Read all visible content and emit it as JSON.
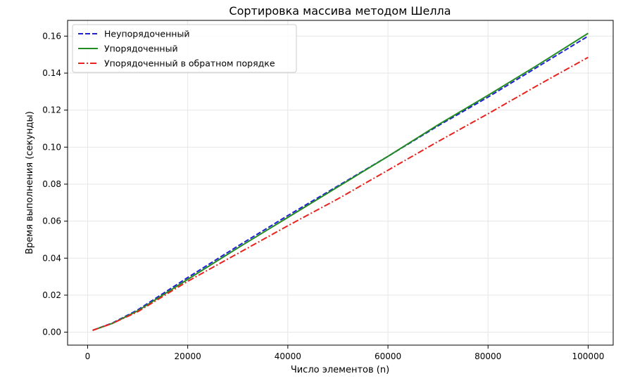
{
  "chart_data": {
    "type": "line",
    "title": "Сортировка массива методом Шелла",
    "xlabel": "Число элементов (n)",
    "ylabel": "Время выполнения (секунды)",
    "xlim": [
      -4000,
      105000
    ],
    "ylim": [
      -0.007,
      0.1685
    ],
    "xticks": [
      0,
      20000,
      40000,
      60000,
      80000,
      100000
    ],
    "xtick_labels": [
      "0",
      "20000",
      "40000",
      "60000",
      "80000",
      "100000"
    ],
    "yticks": [
      0.0,
      0.02,
      0.04,
      0.06,
      0.08,
      0.1,
      0.12,
      0.14,
      0.16
    ],
    "ytick_labels": [
      "0.00",
      "0.02",
      "0.04",
      "0.06",
      "0.08",
      "0.10",
      "0.12",
      "0.14",
      "0.16"
    ],
    "grid": true,
    "legend_position": "top-left",
    "series": [
      {
        "name": "Неупорядоченный",
        "color": "#1f1fd4",
        "dash": "dashed",
        "x": [
          1000,
          5000,
          10000,
          20000,
          30000,
          40000,
          50000,
          60000,
          70000,
          80000,
          90000,
          100000
        ],
        "y": [
          0.001,
          0.005,
          0.012,
          0.0295,
          0.0465,
          0.063,
          0.079,
          0.095,
          0.1115,
          0.127,
          0.1435,
          0.16
        ]
      },
      {
        "name": "Упорядоченный",
        "color": "#228b22",
        "dash": "solid",
        "x": [
          1000,
          5000,
          10000,
          20000,
          30000,
          40000,
          50000,
          60000,
          70000,
          80000,
          90000,
          100000
        ],
        "y": [
          0.001,
          0.0048,
          0.0115,
          0.0285,
          0.0455,
          0.062,
          0.0785,
          0.095,
          0.112,
          0.128,
          0.1445,
          0.1615
        ]
      },
      {
        "name": "Упорядоченный в обратном порядке",
        "color": "#e8231f",
        "dash": "dashdot",
        "x": [
          1000,
          5000,
          10000,
          20000,
          30000,
          40000,
          50000,
          60000,
          70000,
          80000,
          90000,
          100000
        ],
        "y": [
          0.001,
          0.0048,
          0.011,
          0.0275,
          0.0425,
          0.0575,
          0.072,
          0.0875,
          0.103,
          0.118,
          0.1335,
          0.1485
        ]
      }
    ]
  }
}
